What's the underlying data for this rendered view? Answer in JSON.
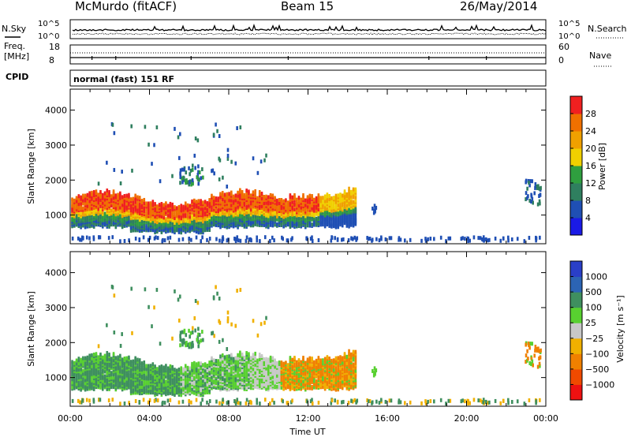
{
  "header": {
    "station": "McMurdo (fitACF)",
    "beam": "Beam 15",
    "date": "26/May/2014"
  },
  "top_panel": {
    "left_label": "N.Sky",
    "right_label": "N.Search",
    "left_ticks": [
      "10^5",
      "10^0"
    ],
    "right_ticks": [
      "10^5",
      "10^0"
    ]
  },
  "freq_panel": {
    "left_label_1": "Freq.",
    "left_label_2": "[MHz]",
    "right_label": "Nave",
    "left_ticks": [
      "18",
      "8"
    ],
    "right_ticks": [
      "60",
      "0"
    ],
    "cpid_label": "CPID",
    "cpid_text": "normal (fast) 151 RF"
  },
  "colors": {
    "power": [
      "#1a1ae6",
      "#1f4fb4",
      "#2f7f5f",
      "#2f9f3f",
      "#f0d000",
      "#f0a000",
      "#f07000",
      "#f02020"
    ],
    "velocity": [
      "#ee1111",
      "#f04a00",
      "#f08000",
      "#f0b000",
      "#c8c8c8",
      "#58d030",
      "#3f8f5f",
      "#2c64b4",
      "#2a3fc8"
    ]
  },
  "chart_data": [
    {
      "type": "heatmap",
      "title": "",
      "ylabel": "Slant Range [km]",
      "xlabel": "",
      "ylim": [
        180,
        4600
      ],
      "y_ticks": [
        "1000",
        "2000",
        "3000",
        "4000"
      ],
      "colorbar_label": "Power [dB]",
      "colorbar_ticks": [
        "4",
        "8",
        "12",
        "16",
        "20",
        "24",
        "28"
      ],
      "colorbar_range": [
        0,
        32
      ]
    },
    {
      "type": "heatmap",
      "title": "",
      "ylabel": "Slant Range [km]",
      "xlabel": "Time UT",
      "ylim": [
        180,
        4600
      ],
      "y_ticks": [
        "1000",
        "2000",
        "3000",
        "4000"
      ],
      "x_ticks": [
        "00:00",
        "04:00",
        "08:00",
        "12:00",
        "16:00",
        "20:00",
        "00:00"
      ],
      "xlim_hours": [
        0,
        24
      ],
      "colorbar_label": "Velocity [m s⁻¹]",
      "colorbar_ticks": [
        "1000",
        "500",
        "100",
        "25",
        "−25",
        "−100",
        "−500",
        "−1000"
      ]
    }
  ]
}
